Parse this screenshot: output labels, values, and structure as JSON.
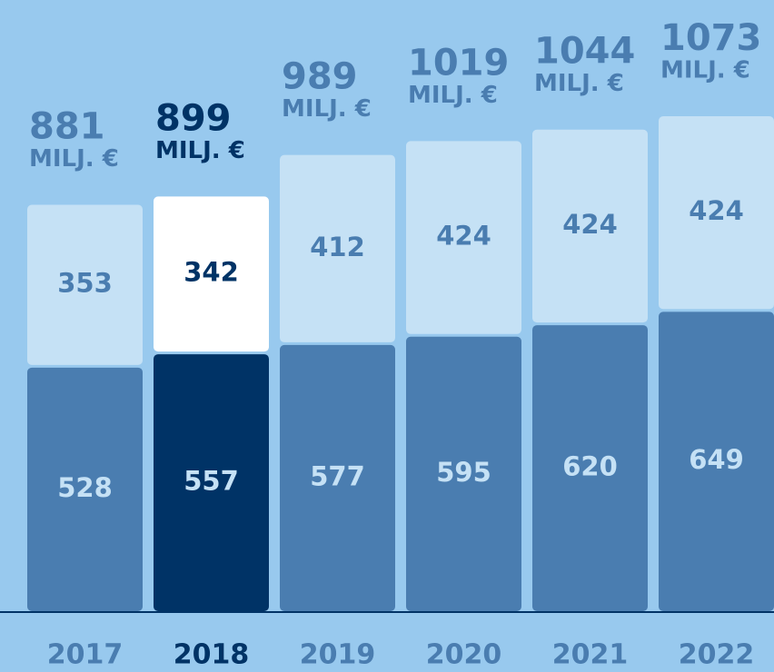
{
  "chart_data": {
    "type": "stacked_bar",
    "categories": [
      "2017",
      "2018",
      "2019",
      "2020",
      "2021",
      "2022"
    ],
    "series": [
      {
        "name": "bottom",
        "color": "#4a7db0",
        "colors": [
          "#4a7db0",
          "#003366",
          "#4a7db0",
          "#4a7db0",
          "#4a7db0",
          "#4a7db0"
        ],
        "label_colors": [
          "#c5e1f5",
          "#c5e1f5",
          "#c5e1f5",
          "#c5e1f5",
          "#c5e1f5",
          "#c5e1f5"
        ],
        "values": [
          528,
          557,
          577,
          595,
          620,
          649
        ]
      },
      {
        "name": "top",
        "color": "#c5e1f5",
        "colors": [
          "#c5e1f5",
          "#ffffff",
          "#c5e1f5",
          "#c5e1f5",
          "#c5e1f5",
          "#c5e1f5"
        ],
        "label_colors": [
          "#4a7db0",
          "#003366",
          "#4a7db0",
          "#4a7db0",
          "#4a7db0",
          "#4a7db0"
        ],
        "values": [
          353,
          342,
          412,
          424,
          424,
          424
        ]
      }
    ],
    "totals": [
      881,
      899,
      989,
      1019,
      1044,
      1073
    ],
    "total_unit": "MILJ. €",
    "total_colors": [
      "#4a7db0",
      "#003366",
      "#4a7db0",
      "#4a7db0",
      "#4a7db0",
      "#4a7db0"
    ],
    "ylim": [
      0,
      1325
    ],
    "background": "#98c9ee",
    "baseline_color": "#003366"
  }
}
